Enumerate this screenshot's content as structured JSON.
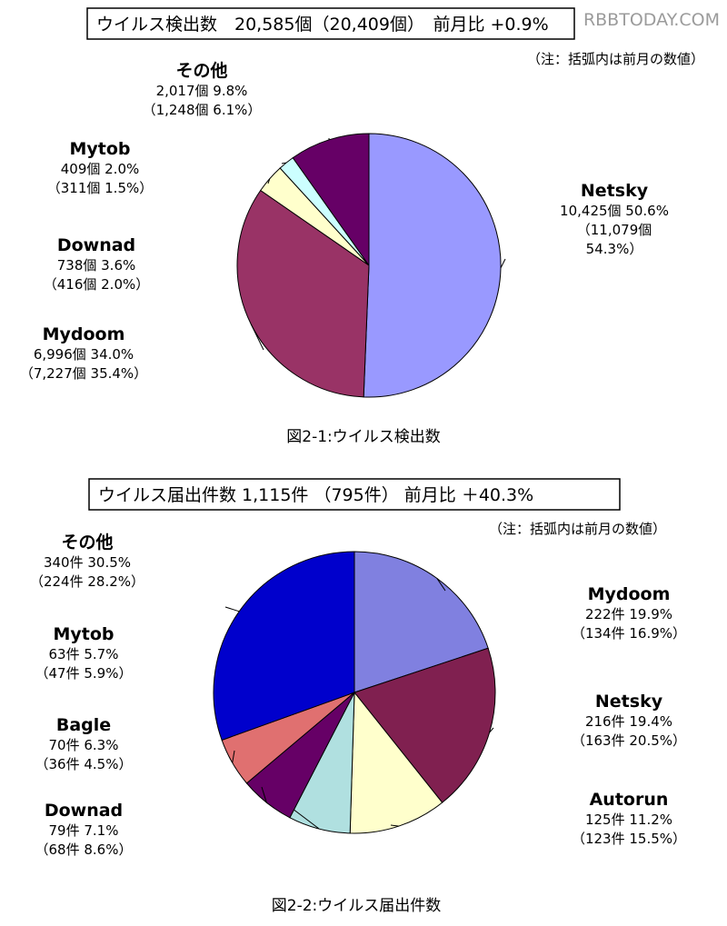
{
  "watermark": "RBBTODAY.COM",
  "chart_data": [
    {
      "type": "pie",
      "title": "ウイルス検出数　20,585個（20,409個）　前月比 +0.9%",
      "note": "（注：括弧内は前月の数値）",
      "caption": "図2-1:ウイルス検出数",
      "slices": [
        {
          "name": "Netsky",
          "value": 10425,
          "percent": 50.6,
          "line1": "10,425個 50.6%",
          "line2": "（11,079個",
          "line3": "54.3%）",
          "color": "#9999ff"
        },
        {
          "name": "Mydoom",
          "value": 6996,
          "percent": 34.0,
          "line1": "6,996個 34.0%",
          "line2": "（7,227個 35.4%）",
          "color": "#993366"
        },
        {
          "name": "Downad",
          "value": 738,
          "percent": 3.6,
          "line1": "738個 3.6%",
          "line2": "（416個 2.0%）",
          "color": "#ffffcc"
        },
        {
          "name": "Mytob",
          "value": 409,
          "percent": 2.0,
          "line1": "409個 2.0%",
          "line2": "（311個 1.5%）",
          "color": "#ccffff"
        },
        {
          "name": "その他",
          "value": 2017,
          "percent": 9.8,
          "line1": "2,017個 9.8%",
          "line2": "（1,248個 6.1%）",
          "color": "#660066"
        }
      ]
    },
    {
      "type": "pie",
      "title": "ウイルス届出件数 1,115件 （795件） 前月比 ＋40.3%",
      "note": "（注：括弧内は前月の数値）",
      "caption": "図2-2:ウイルス届出件数",
      "slices": [
        {
          "name": "Mydoom",
          "value": 222,
          "percent": 19.9,
          "line1": "222件 19.9%",
          "line2": "（134件 16.9%）",
          "color": "#8080e0"
        },
        {
          "name": "Netsky",
          "value": 216,
          "percent": 19.4,
          "line1": "216件 19.4%",
          "line2": "（163件 20.5%）",
          "color": "#802050"
        },
        {
          "name": "Autorun",
          "value": 125,
          "percent": 11.2,
          "line1": "125件 11.2%",
          "line2": "（123件 15.5%）",
          "color": "#ffffcc"
        },
        {
          "name": "Downad",
          "value": 79,
          "percent": 7.1,
          "line1": "79件 7.1%",
          "line2": "（68件 8.6%）",
          "color": "#b0e0e0"
        },
        {
          "name": "Bagle",
          "value": 70,
          "percent": 6.3,
          "line1": "70件 6.3%",
          "line2": "（36件 4.5%）",
          "color": "#660066"
        },
        {
          "name": "Mytob",
          "value": 63,
          "percent": 5.7,
          "line1": "63件 5.7%",
          "line2": "（47件 5.9%）",
          "color": "#e07070"
        },
        {
          "name": "その他",
          "value": 340,
          "percent": 30.5,
          "line1": "340件 30.5%",
          "line2": "（224件 28.2%）",
          "color": "#0000cc"
        }
      ]
    }
  ]
}
